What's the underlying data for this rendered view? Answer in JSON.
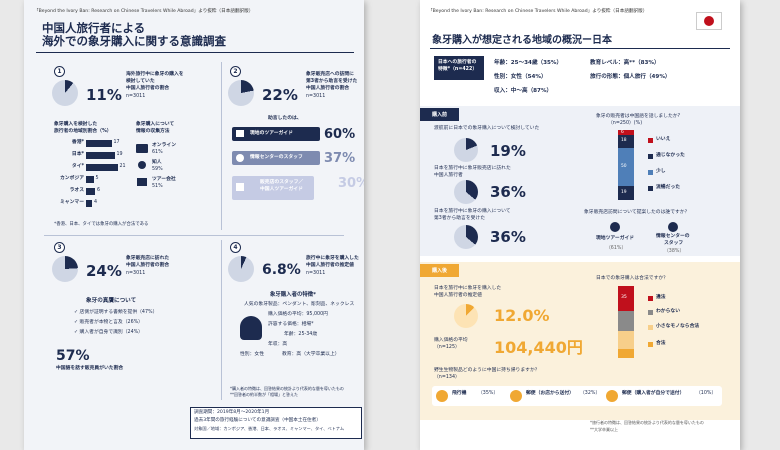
{
  "left": {
    "source": "「Beyond the Ivory Ban: Research on Chinese Travelers While Abroad」より抜粋（日本語翻訳版）",
    "title_1": "中国人旅行者による",
    "title_2": "海外での象牙購入に関する意識調査",
    "s1": {
      "num": "1",
      "pct": "11%",
      "text_1": "海外旅行中に象牙の購入を",
      "text_2": "検討していた",
      "text_3": "中国人旅行者の割合",
      "n": "n=3011"
    },
    "s2": {
      "num": "2",
      "pct": "22%",
      "text_1": "象牙販売店への訪問に",
      "text_2": "第3者から助言を受けた",
      "text_3": "中国人旅行者の割合",
      "n": "n=3011",
      "advice_title": "助言したのは、",
      "rows": [
        {
          "label": "現地のツアーガイド",
          "pct": "60%"
        },
        {
          "label": "情報センターのスタッフ",
          "pct": "37%"
        },
        {
          "label_1": "販売店のスタッフ／",
          "label_2": "中国人ツアーガイド",
          "pct": "30%"
        }
      ]
    },
    "dest": {
      "title_1": "象牙購入を検討した",
      "title_2": "旅行者の地域別割合（%）",
      "items": [
        {
          "label": "香港*",
          "value": 17
        },
        {
          "label": "日本*",
          "value": 19
        },
        {
          "label": "タイ*",
          "value": 21
        },
        {
          "label": "カンボジア",
          "value": 5
        },
        {
          "label": "ラオス",
          "value": 6
        },
        {
          "label": "ミャンマー",
          "value": 4
        }
      ],
      "note": "*香港、日本、タイでは象牙の購入が合法である"
    },
    "info": {
      "title_1": "象牙購入について",
      "title_2": "情報の収集方法",
      "items": [
        {
          "label": "オンライン",
          "pct": "61%"
        },
        {
          "label": "知人",
          "pct": "59%"
        },
        {
          "label": "ツアー会社",
          "pct": "51%"
        }
      ]
    },
    "s3": {
      "num": "3",
      "pct": "24%",
      "text_1": "象牙販売店に訪れた",
      "text_2": "中国人旅行者の割合",
      "n": "n=3011",
      "auth_title": "象牙の真贋について",
      "checks": [
        "店側が証明する書類を提供（47%）",
        "販売者が本物と言及（26%）",
        "購入者が自身で識別（24%）"
      ],
      "pct57": "57%",
      "pct57_text": "中国語を話す販売員がいた割合"
    },
    "s4": {
      "num": "4",
      "pct": "6.8%",
      "text_1": "旅行中に象牙を購入した",
      "text_2": "中国人旅行者の推定値",
      "n": "n=3011",
      "feat_title": "象牙購入者の特徴*",
      "items": [
        "人気の象牙製品：ペンダント、彫刻品、ネックレス",
        "購入価格の平均：95,000円",
        "許容する価格：相場*",
        "年齢：25-34歳",
        "年収：高",
        "性別：女性",
        "教育：高（大学卒業以上）"
      ],
      "notes": [
        "*購入者の特徴は、回答結果の統計より代表的な層を導いたもの",
        "**回答者の約半数が「相場」と答えた"
      ]
    },
    "footer": [
      "調査期間：2019年8月〜2020年1月",
      "過去3年間の旅行経験についての意識調査（中国本土在住者）",
      "対象国／地域：カンボジア、香港、日本、ラオス、ミャンマー、タイ、ベトナム"
    ]
  },
  "right": {
    "source": "「Beyond the Ivory Ban: Research on Chinese Travelers While Abroad」より抜粋（日本語翻訳版）",
    "title": "象牙購入が想定される地域の概況ー日本",
    "profile": {
      "label_1": "日本への旅行者の",
      "label_2": "特徴*（n=422）",
      "items": [
        "年齢：25〜34歳（35%）",
        "性別：女性（54%）",
        "収入：中〜高（87%）",
        "教育レベル：高**（83%）",
        "旅行の形態：個人旅行（49%）"
      ]
    },
    "before": {
      "badge": "購入前",
      "q1": "渡航前に日本での象牙購入について検討していた",
      "p1": "19%",
      "q2_1": "日本を旅行中に象牙販売店に訪れた",
      "q2_2": "中国人旅行者",
      "p2": "36%",
      "q3_1": "日本を旅行中に象牙の購入について",
      "q3_2": "第3者から助言を受けた",
      "p3": "36%",
      "legal_q_1": "象牙の販売者は中国語を話しましたか?",
      "legal_q_2": "（n=250）(%)",
      "stack": [
        {
          "label": "いいえ",
          "value": 6
        },
        {
          "label": "通じなかった",
          "value": 18
        },
        {
          "label": "少し",
          "value": 50
        },
        {
          "label": "流暢だった",
          "value": 19
        }
      ],
      "advice_q": "象牙販売店訪問について提案したのは誰ですか？",
      "adv": [
        {
          "l1": "現地ツアーガイド",
          "pct": "（61%）"
        },
        {
          "l1": "情報センターの",
          "l2": "スタッフ",
          "pct": "（38%）"
        }
      ]
    },
    "after": {
      "badge": "購入後",
      "q1_1": "日本を旅行中に象牙を購入した",
      "q1_2": "中国人旅行者の推定値",
      "p1": "12.0%",
      "avg_1": "購入価格の平均",
      "avg_2": "（n=125）",
      "avg": "104,440円",
      "legal_q": "日本での象牙購入は合法ですか？",
      "stack": [
        {
          "label": "違法",
          "value": 35
        },
        {
          "label": "わからない",
          "value": ""
        },
        {
          "label": "小さなモノなら合法",
          "value": ""
        },
        {
          "label": "合法",
          "value": ""
        }
      ],
      "carry_q_1": "野生生物製品どのように中国に持ち帰りますか？",
      "carry_q_2": "（n=134）",
      "carry": [
        {
          "label": "飛行機",
          "pct": "（35%）"
        },
        {
          "label": "郵便（お店から送付）",
          "pct": "（32%）"
        },
        {
          "label": "郵便（購入者が自分で送付）",
          "pct": "（10%）"
        }
      ]
    },
    "notes": [
      "*旅行者の特徴は、回答結果の統計より代表的な層を導いたもの",
      "**大学卒業以上"
    ]
  }
}
